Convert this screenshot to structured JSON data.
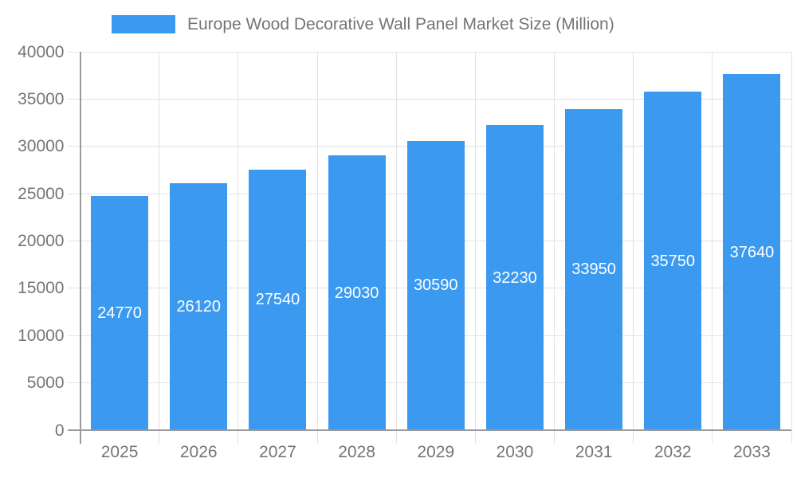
{
  "chart_data": {
    "type": "bar",
    "title": "Europe Wood Decorative Wall Panel Market Size (Million)",
    "series_name": "Europe Wood Decorative Wall Panel Market Size (Million)",
    "categories": [
      "2025",
      "2026",
      "2027",
      "2028",
      "2029",
      "2030",
      "2031",
      "2032",
      "2033"
    ],
    "values": [
      24770,
      26120,
      27540,
      29030,
      30590,
      32230,
      33950,
      35750,
      37640
    ],
    "bar_labels": [
      "24770",
      "26120",
      "27540",
      "29030",
      "30590",
      "32230",
      "33950",
      "35750",
      "37640"
    ],
    "xlabel": "",
    "ylabel": "",
    "ylim": [
      0,
      40000
    ],
    "y_ticks": [
      0,
      5000,
      10000,
      15000,
      20000,
      25000,
      30000,
      35000,
      40000
    ],
    "y_tick_labels": [
      "0",
      "5000",
      "10000",
      "15000",
      "20000",
      "25000",
      "30000",
      "35000",
      "40000"
    ],
    "grid": true,
    "legend_position": "top",
    "colors": {
      "bar_fill": "#3b9af0",
      "bar_value_text": "#ffffff",
      "gridline": "#e2e2e2",
      "axis_line": "#9a9a9a",
      "tick_text": "#757575",
      "legend_text": "#757575",
      "background": "#ffffff"
    }
  }
}
